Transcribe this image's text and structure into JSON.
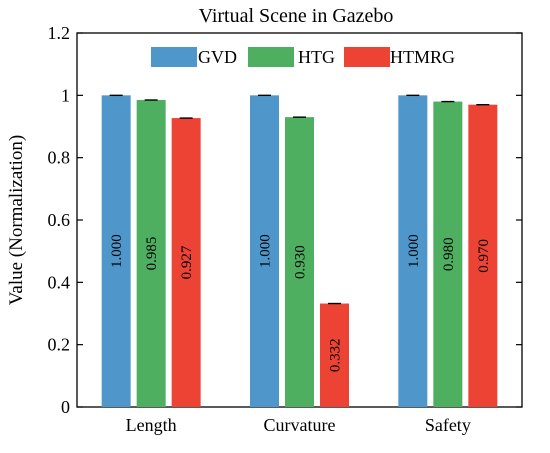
{
  "chart_data": {
    "type": "bar",
    "title": "Virtual Scene in Gazebo",
    "xlabel": "",
    "ylabel": "Value (Normalization)",
    "categories": [
      "Length",
      "Curvature",
      "Safety"
    ],
    "ylim": [
      0,
      1.2
    ],
    "yticks": [
      "0",
      "0.2",
      "0.4",
      "0.6",
      "0.8",
      "1",
      "1.2"
    ],
    "grid": false,
    "legend": "top-center",
    "series": [
      {
        "name": "GVD",
        "color": "#4f97ca",
        "values": [
          1.0,
          1.0,
          1.0
        ],
        "labels": [
          "1.000",
          "1.000",
          "1.000"
        ]
      },
      {
        "name": "HTG",
        "color": "#4faf61",
        "values": [
          0.985,
          0.93,
          0.98
        ],
        "labels": [
          "0.985",
          "0.930",
          "0.980"
        ]
      },
      {
        "name": "HTMRG",
        "color": "#ec4334",
        "values": [
          0.927,
          0.332,
          0.97
        ],
        "labels": [
          "0.927",
          "0.332",
          "0.970"
        ]
      }
    ]
  }
}
